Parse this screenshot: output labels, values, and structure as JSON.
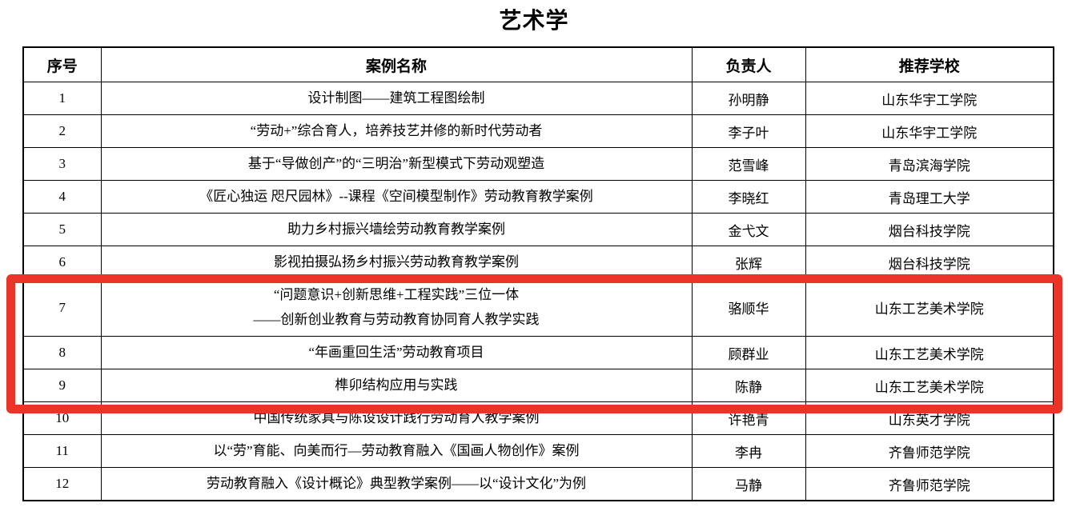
{
  "page_title": "艺术学",
  "table": {
    "headers": [
      "序号",
      "案例名称",
      "负责人",
      "推荐学校"
    ],
    "rows": [
      {
        "no": "1",
        "case": "设计制图——建筑工程图绘制",
        "leader": "孙明静",
        "school": "山东华宇工学院",
        "highlighted": false
      },
      {
        "no": "2",
        "case": "“劳动+”综合育人，培养技艺并修的新时代劳动者",
        "leader": "李子叶",
        "school": "山东华宇工学院",
        "highlighted": false
      },
      {
        "no": "3",
        "case": "基于“导做创产”的“三明治”新型模式下劳动观塑造",
        "leader": "范雪峰",
        "school": "青岛滨海学院",
        "highlighted": false
      },
      {
        "no": "4",
        "case": "《匠心独运 咫尺园林》--课程《空间模型制作》劳动教育教学案例",
        "leader": "李晓红",
        "school": "青岛理工大学",
        "highlighted": false
      },
      {
        "no": "5",
        "case": "助力乡村振兴墙绘劳动教育教学案例",
        "leader": "金弋文",
        "school": "烟台科技学院",
        "highlighted": false
      },
      {
        "no": "6",
        "case": "影视拍摄弘扬乡村振兴劳动教育教学案例",
        "leader": "张辉",
        "school": "烟台科技学院",
        "highlighted": false
      },
      {
        "no": "7",
        "case": "“问题意识+创新思维+工程实践”三位一体\n——创新创业教育与劳动教育协同育人教学实践",
        "leader": "骆顺华",
        "school": "山东工艺美术学院",
        "highlighted": true
      },
      {
        "no": "8",
        "case": "“年画重回生活”劳动教育项目",
        "leader": "顾群业",
        "school": "山东工艺美术学院",
        "highlighted": true
      },
      {
        "no": "9",
        "case": "榫卯结构应用与实践",
        "leader": "陈静",
        "school": "山东工艺美术学院",
        "highlighted": true
      },
      {
        "no": "10",
        "case": "中国传统家具与陈设设计践行劳动育人教学案例",
        "leader": "许艳青",
        "school": "山东英才学院",
        "highlighted": false
      },
      {
        "no": "11",
        "case": "以“劳”育能、向美而行—劳动教育融入《国画人物创作》案例",
        "leader": "李冉",
        "school": "齐鲁师范学院",
        "highlighted": false
      },
      {
        "no": "12",
        "case": "劳动教育融入《设计概论》典型教学案例——以“设计文化”为例",
        "leader": "马静",
        "school": "齐鲁师范学院",
        "highlighted": false
      }
    ]
  },
  "highlight": {
    "color": "#ea3428",
    "rows_covered": "7-9"
  }
}
